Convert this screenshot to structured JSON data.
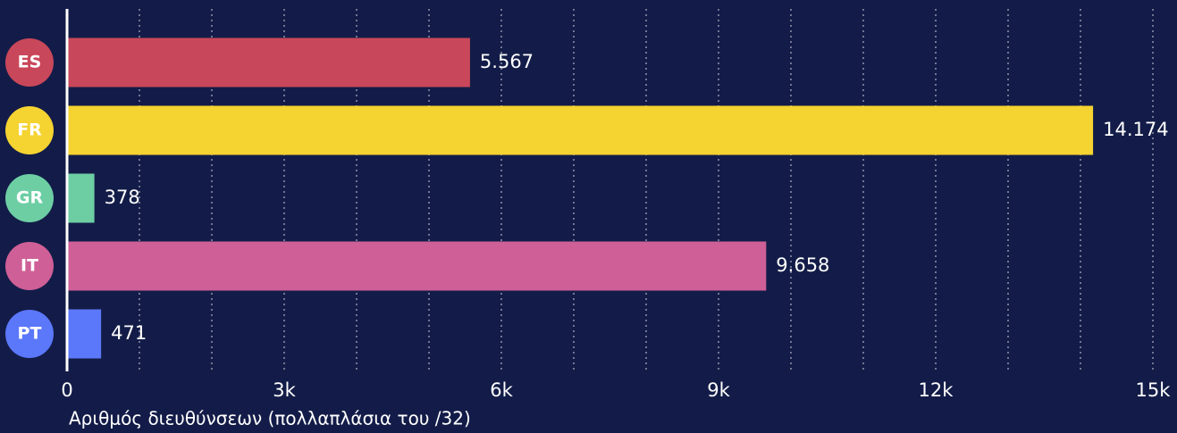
{
  "chart_data": {
    "type": "bar",
    "orientation": "horizontal",
    "categories": [
      "ES",
      "FR",
      "GR",
      "IT",
      "PT"
    ],
    "values": [
      5567,
      14174,
      378,
      9658,
      471
    ],
    "value_labels": [
      "5.567",
      "14.174",
      "378",
      "9.658",
      "471"
    ],
    "colors": [
      "#c9475a",
      "#f5d331",
      "#6dcea4",
      "#cf5f97",
      "#5b77fa"
    ],
    "xlabel": "Αριθμός διευθύνσεων (πολλαπλάσια του /32)",
    "xlim": [
      0,
      15000
    ],
    "xticks": [
      {
        "value": 0,
        "label": "0"
      },
      {
        "value": 3000,
        "label": "3k"
      },
      {
        "value": 6000,
        "label": "6k"
      },
      {
        "value": 9000,
        "label": "9k"
      },
      {
        "value": 12000,
        "label": "12k"
      },
      {
        "value": 15000,
        "label": "15k"
      }
    ],
    "grid_ticks": [
      1000,
      2000,
      3000,
      4000,
      5000,
      6000,
      7000,
      8000,
      9000,
      10000,
      11000,
      12000,
      13000,
      14000,
      15000
    ],
    "grid": true
  }
}
